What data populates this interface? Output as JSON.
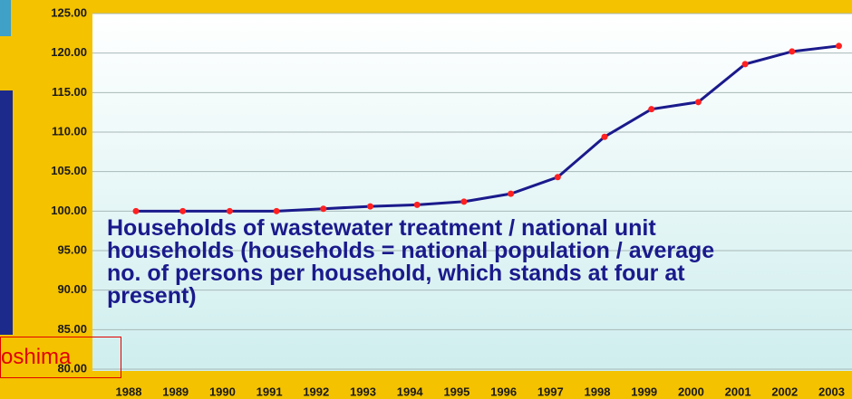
{
  "chart_data": {
    "type": "line",
    "categories": [
      "1988",
      "1989",
      "1990",
      "1991",
      "1992",
      "1993",
      "1994",
      "1995",
      "1996",
      "1997",
      "1998",
      "1999",
      "2000",
      "2001",
      "2002",
      "2003"
    ],
    "series": [
      {
        "color": "#1a1a8c",
        "marker_color": "#ff2020",
        "values": [
          100,
          100,
          100,
          100,
          100.3,
          100.6,
          100.8,
          101.2,
          102.2,
          104.3,
          109.4,
          112.9,
          113.8,
          118.6,
          120.2,
          120.9
        ]
      }
    ],
    "ylim": [
      80,
      125
    ],
    "yticks": [
      {
        "value": 80,
        "label": "80.00"
      },
      {
        "value": 85,
        "label": "85.00"
      },
      {
        "value": 90,
        "label": "90.00"
      },
      {
        "value": 95,
        "label": "95.00"
      },
      {
        "value": 100,
        "label": "100.00"
      },
      {
        "value": 105,
        "label": "105.00"
      },
      {
        "value": 110,
        "label": "110.00"
      },
      {
        "value": 115,
        "label": "115.00"
      },
      {
        "value": 120,
        "label": "120.00"
      },
      {
        "value": 125,
        "label": "125.00"
      }
    ],
    "grid": true,
    "annotation": "Households of wastewater treatment / national unit households (households = national population / average no. of persons per household, which stands at four at present)"
  },
  "overlay_label": "oshima"
}
